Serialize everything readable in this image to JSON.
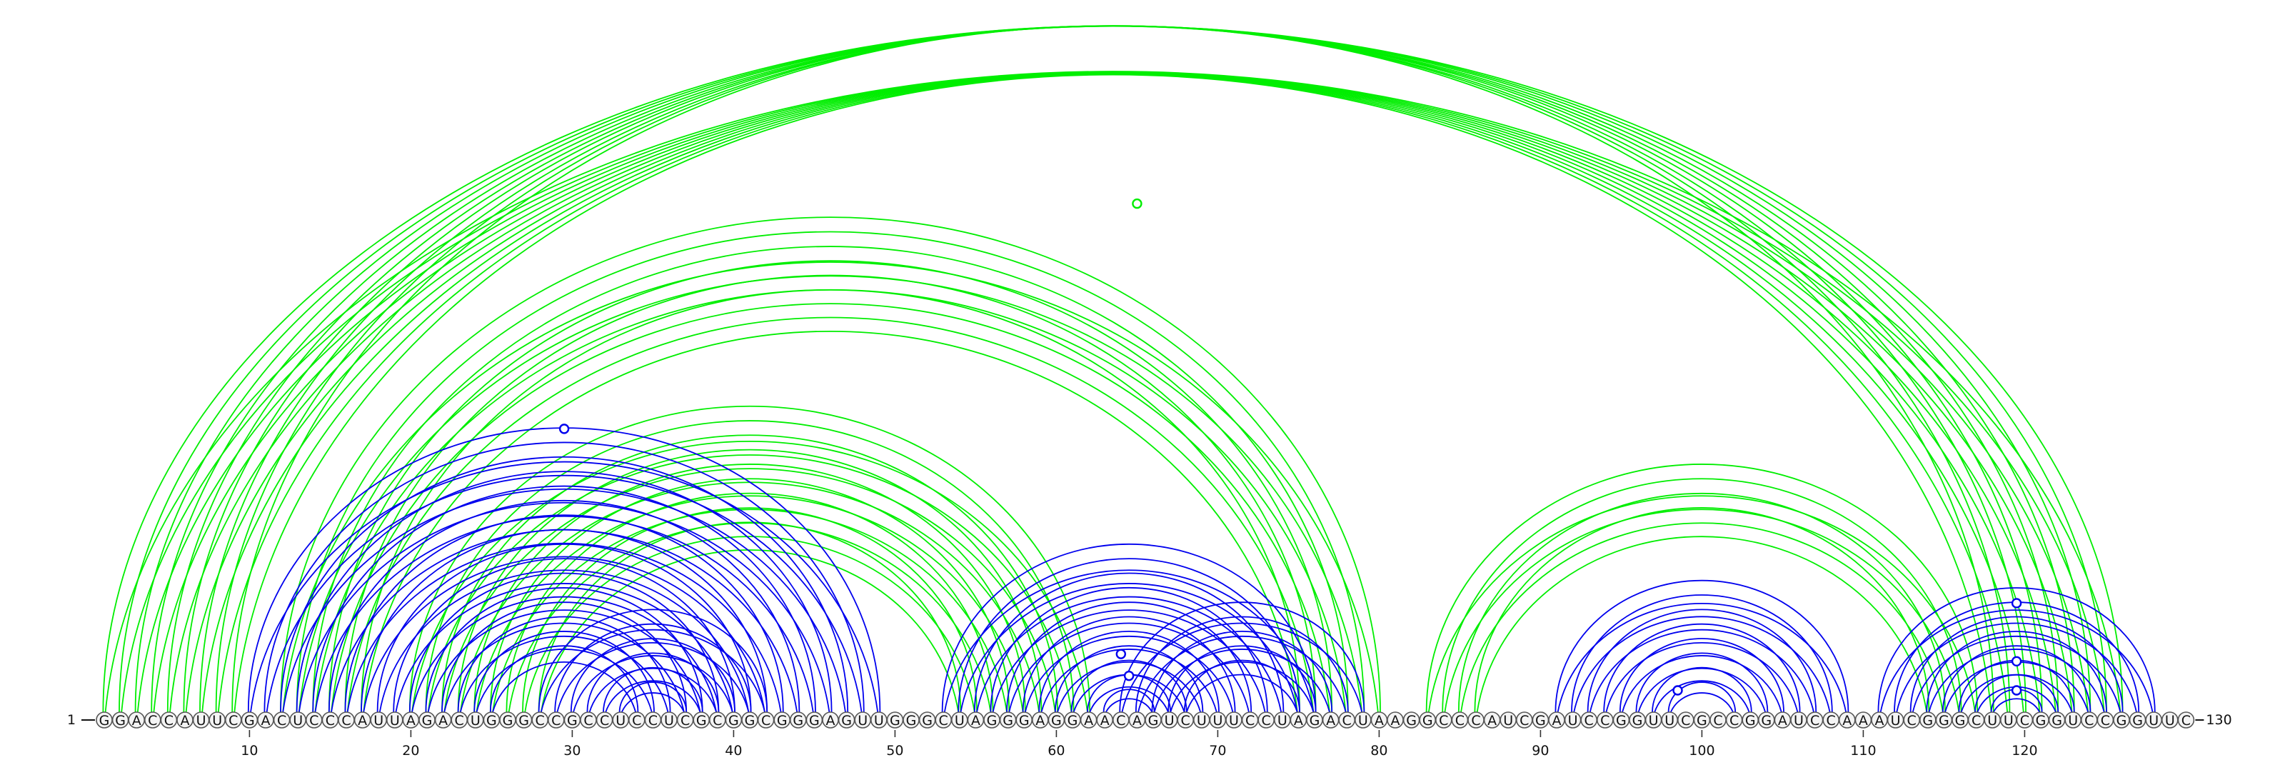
{
  "sequence": "GGACCAUUCGACUCCCAUUAGACUGGGCCGCCUCCUCGCGGCGGGAGUUGGGCUAGGGAGGAACAGUCUUUCCUAGACUAAGGCCCAUCGAUCCGGUUCGCCGGAUCCAAAUCGGGCUUCGGUCCGGUUC",
  "start_label": "1",
  "end_label": "130",
  "tick_labels": [
    "10",
    "20",
    "30",
    "40",
    "50",
    "60",
    "70",
    "80",
    "90",
    "100",
    "110",
    "120"
  ],
  "colors": {
    "local_helix": "#0000ee",
    "long_range_helix": "#00ee00"
  },
  "helices": [
    {
      "kind": "long_range",
      "pairs": [
        [
          1,
          126
        ],
        [
          2,
          125
        ],
        [
          3,
          124
        ],
        [
          4,
          123
        ],
        [
          5,
          122
        ],
        [
          6,
          121
        ],
        [
          7,
          120
        ],
        [
          8,
          119
        ],
        [
          9,
          118
        ]
      ]
    },
    {
      "kind": "long_range",
      "pairs": [
        [
          12,
          80
        ],
        [
          13,
          79
        ],
        [
          14,
          78
        ],
        [
          15,
          77
        ],
        [
          16,
          76
        ],
        [
          17,
          75
        ]
      ]
    },
    {
      "kind": "long_range",
      "pairs": [
        [
          20,
          62
        ],
        [
          21,
          61
        ],
        [
          22,
          60
        ],
        [
          23,
          59
        ],
        [
          24,
          58
        ],
        [
          25,
          57
        ],
        [
          26,
          56
        ]
      ]
    },
    {
      "kind": "long_range",
      "pairs": [
        [
          27,
          55
        ],
        [
          28,
          54
        ]
      ]
    },
    {
      "kind": "long_range",
      "pairs": [
        [
          83,
          117
        ],
        [
          84,
          116
        ],
        [
          85,
          115
        ],
        [
          86,
          114
        ]
      ]
    },
    {
      "kind": "local",
      "pairs": [
        [
          10,
          49
        ],
        [
          11,
          48
        ],
        [
          12,
          47
        ],
        [
          13,
          46
        ],
        [
          14,
          45
        ],
        [
          15,
          44
        ],
        [
          16,
          43
        ],
        [
          17,
          42
        ],
        [
          18,
          41
        ],
        [
          19,
          40
        ],
        [
          20,
          39
        ],
        [
          21,
          38
        ],
        [
          22,
          37
        ],
        [
          23,
          36
        ],
        [
          24,
          35
        ],
        [
          25,
          34
        ]
      ]
    },
    {
      "kind": "local",
      "pairs": [
        [
          28,
          42
        ],
        [
          29,
          41
        ],
        [
          30,
          40
        ],
        [
          31,
          39
        ],
        [
          32,
          38
        ],
        [
          33,
          37
        ]
      ]
    },
    {
      "kind": "local",
      "pairs": [
        [
          53,
          76
        ],
        [
          54,
          75
        ],
        [
          55,
          74
        ],
        [
          56,
          73
        ],
        [
          57,
          72
        ],
        [
          58,
          71
        ],
        [
          59,
          70
        ],
        [
          60,
          69
        ],
        [
          61,
          68
        ],
        [
          62,
          67
        ],
        [
          63,
          66
        ]
      ]
    },
    {
      "kind": "local",
      "pairs": [
        [
          64,
          79
        ],
        [
          65,
          78
        ],
        [
          66,
          77
        ],
        [
          67,
          76
        ],
        [
          68,
          75
        ]
      ]
    },
    {
      "kind": "local",
      "pairs": [
        [
          91,
          109
        ],
        [
          92,
          108
        ],
        [
          93,
          107
        ],
        [
          94,
          106
        ],
        [
          95,
          105
        ],
        [
          96,
          104
        ],
        [
          97,
          103
        ],
        [
          98,
          102
        ]
      ]
    },
    {
      "kind": "local",
      "pairs": [
        [
          111,
          128
        ],
        [
          112,
          127
        ],
        [
          113,
          126
        ],
        [
          114,
          125
        ],
        [
          115,
          124
        ],
        [
          116,
          123
        ],
        [
          117,
          122
        ],
        [
          118,
          121
        ]
      ]
    }
  ],
  "noncanonical": [
    {
      "kind": "long_range",
      "pair": [
        30,
        100
      ]
    },
    {
      "kind": "local",
      "pair": [
        10,
        49
      ]
    },
    {
      "kind": "local",
      "pair": [
        60,
        68
      ]
    },
    {
      "kind": "local",
      "pair": [
        62,
        67
      ]
    },
    {
      "kind": "local",
      "pair": [
        97,
        100
      ]
    },
    {
      "kind": "local",
      "pair": [
        112,
        127
      ]
    },
    {
      "kind": "local",
      "pair": [
        116,
        123
      ]
    },
    {
      "kind": "local",
      "pair": [
        118,
        121
      ]
    }
  ]
}
